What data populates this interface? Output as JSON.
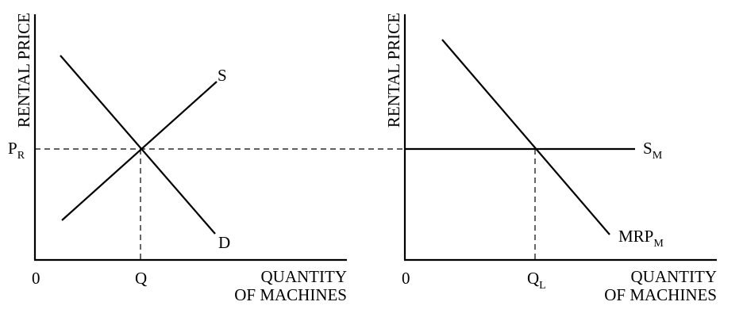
{
  "left_panel": {
    "y_axis_label": "RENTAL PRICE",
    "x_axis_label_line1": "QUANTITY",
    "x_axis_label_line2": "OF MACHINES",
    "origin_label": "0",
    "price_label_main": "P",
    "price_label_sub": "R",
    "quantity_label": "Q",
    "supply_label": "S",
    "demand_label": "D"
  },
  "right_panel": {
    "y_axis_label": "RENTAL PRICE",
    "x_axis_label_line1": "QUANTITY",
    "x_axis_label_line2": "OF MACHINES",
    "origin_label": "0",
    "quantity_label_main": "Q",
    "quantity_label_sub": "L",
    "supply_label_main": "S",
    "supply_label_sub": "M",
    "mrp_label_main": "MRP",
    "mrp_label_sub": "M"
  },
  "colors": {
    "ink": "#000000",
    "background": "#ffffff"
  }
}
